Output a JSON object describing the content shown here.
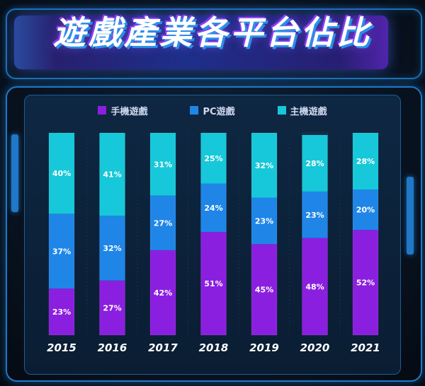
{
  "title": "遊戲產業各平台佔比",
  "colors": {
    "mobile": "#8b1fe0",
    "pc": "#1f86e8",
    "console": "#16c8d9"
  },
  "chart_data": {
    "type": "bar",
    "stacked": true,
    "categories": [
      "2015",
      "2016",
      "2017",
      "2018",
      "2019",
      "2020",
      "2021"
    ],
    "series": [
      {
        "name": "手機遊戲",
        "key": "mobile",
        "values": [
          23,
          27,
          42,
          51,
          45,
          48,
          52
        ]
      },
      {
        "name": "PC遊戲",
        "key": "pc",
        "values": [
          37,
          32,
          27,
          24,
          23,
          23,
          20
        ]
      },
      {
        "name": "主機遊戲",
        "key": "console",
        "values": [
          40,
          41,
          31,
          25,
          32,
          28,
          28
        ]
      }
    ],
    "value_suffix": "%",
    "ylim": [
      0,
      100
    ],
    "legend_position": "top-center",
    "grid": false
  }
}
